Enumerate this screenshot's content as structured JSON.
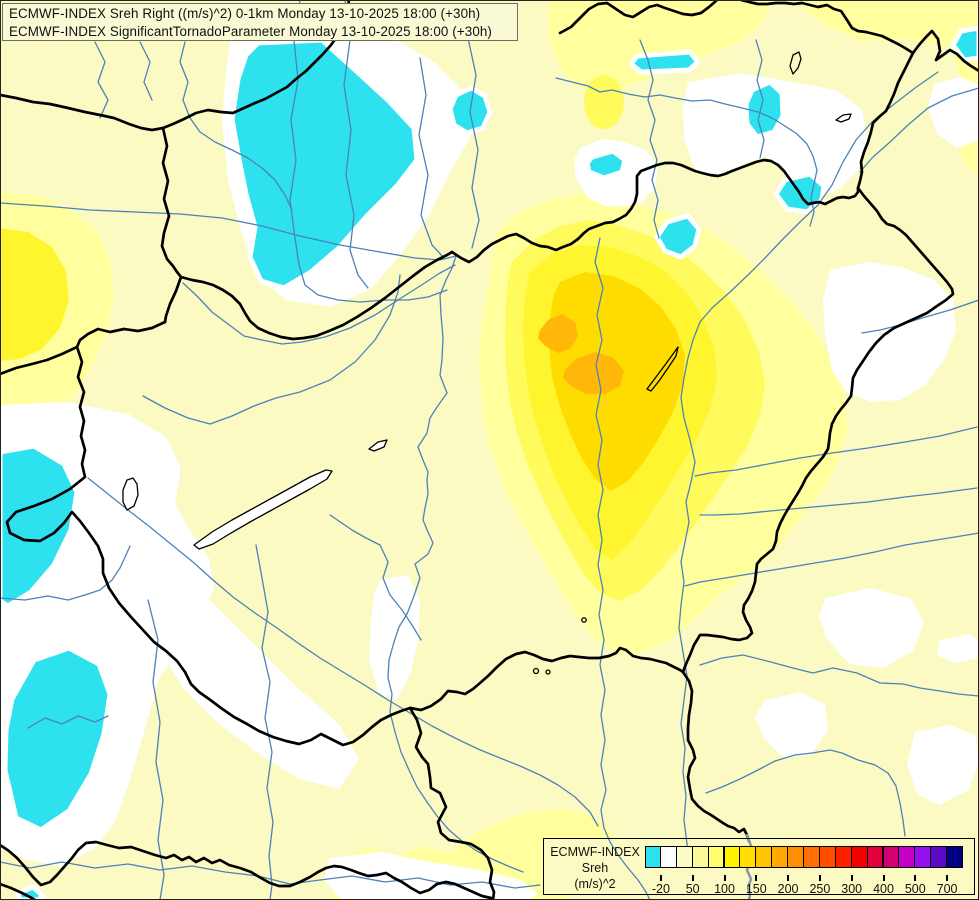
{
  "title_box": {
    "line1": "ECMWF-INDEX Sreh Right ((m/s)^2) 0-1km Monday 13-10-2025 18:00 (+30h)",
    "line2": "ECMWF-INDEX SignificantTornadoParameter Monday 13-10-2025 18:00 (+30h)"
  },
  "legend": {
    "title_line1": "ECMWF-INDEX",
    "title_line2": "Sreh",
    "title_line3": "(m/s)^2",
    "tick_labels": [
      "-20",
      "50",
      "100",
      "150",
      "200",
      "250",
      "300",
      "400",
      "500",
      "700"
    ],
    "colors": [
      "#2AE1ED",
      "#FFFFFF",
      "#FBFBC8",
      "#FAFA9B",
      "#FFFF70",
      "#FFF400",
      "#FFDE00",
      "#FFC400",
      "#FFA900",
      "#FF8D00",
      "#FF7000",
      "#FF4D00",
      "#FF2000",
      "#F30000",
      "#E2003E",
      "#D10073",
      "#C400C4",
      "#9412F0",
      "#5B0AC8",
      "#000080"
    ]
  },
  "map": {
    "colors": {
      "background": "#FAFAC2",
      "white_band": "#FFFFFF",
      "cyan_band": "#2EE1EE",
      "soft_yellow": "#FFFF9E",
      "mid_yellow": "#FFFB5C",
      "bright_yellow": "#FFF52E",
      "gold": "#FFDC00",
      "orange": "#FFB70A",
      "river": "#4D82B8",
      "border": "#000000",
      "gray_overlay": "#8A96A4",
      "lake_fill": "#FFFFFF",
      "title_bg": "#F9F9D6",
      "frame": "#222222"
    }
  }
}
